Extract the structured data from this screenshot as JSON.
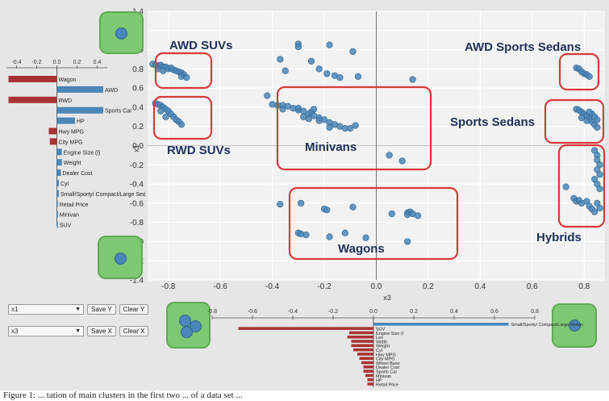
{
  "scatter": {
    "x_axis_label": "x3",
    "y_axis_label": "x1",
    "x_ticks": [
      "-0.8",
      "-0.6",
      "-0.4",
      "-0.2",
      "0.0",
      "0.2",
      "0.4",
      "0.6",
      "0.8"
    ],
    "y_ticks": [
      "1.4",
      "1.2",
      "1.0",
      "0.8",
      "0.6",
      "0.4",
      "0.2",
      "0.0",
      "-0.2",
      "-0.4",
      "-0.6",
      "-0.8",
      "-1.0",
      "-1.2",
      "-1.4"
    ],
    "clusters": {
      "awd_suvs": "AWD SUVs",
      "rwd_suvs": "RWD SUVs",
      "minivans": "Minivans",
      "wagons": "Wagons",
      "awd_sports_sedans": "AWD Sports Sedans",
      "sports_sedans": "Sports Sedans",
      "hybrids": "Hybrids"
    },
    "colors": {
      "point": "#4a86b7",
      "point_stroke": "#2f628f",
      "highlight": "#d93a3a",
      "bar": "#a83232",
      "bar_pos": "#4a86b7"
    }
  },
  "chart_data": [
    {
      "type": "scatter",
      "xlabel": "x3",
      "ylabel": "x1",
      "xlim": [
        -0.88,
        0.88
      ],
      "ylim": [
        -1.4,
        1.4
      ],
      "grid": true,
      "points": [
        [
          -0.86,
          0.85
        ],
        [
          -0.85,
          0.84
        ],
        [
          -0.84,
          0.83
        ],
        [
          -0.83,
          0.84
        ],
        [
          -0.82,
          0.82
        ],
        [
          -0.81,
          0.82
        ],
        [
          -0.8,
          0.8
        ],
        [
          -0.79,
          0.81
        ],
        [
          -0.78,
          0.79
        ],
        [
          -0.77,
          0.78
        ],
        [
          -0.76,
          0.77
        ],
        [
          -0.75,
          0.76
        ],
        [
          -0.74,
          0.74
        ],
        [
          -0.75,
          0.72
        ],
        [
          -0.73,
          0.71
        ],
        [
          -0.84,
          0.8
        ],
        [
          -0.82,
          0.78
        ],
        [
          -0.85,
          0.44
        ],
        [
          -0.84,
          0.43
        ],
        [
          -0.83,
          0.42
        ],
        [
          -0.82,
          0.4
        ],
        [
          -0.81,
          0.38
        ],
        [
          -0.8,
          0.36
        ],
        [
          -0.79,
          0.33
        ],
        [
          -0.78,
          0.3
        ],
        [
          -0.77,
          0.27
        ],
        [
          -0.76,
          0.25
        ],
        [
          -0.75,
          0.22
        ],
        [
          -0.83,
          0.36
        ],
        [
          -0.81,
          0.3
        ],
        [
          -0.42,
          0.52
        ],
        [
          -0.4,
          0.43
        ],
        [
          -0.38,
          0.42
        ],
        [
          -0.36,
          0.42
        ],
        [
          -0.34,
          0.41
        ],
        [
          -0.32,
          0.39
        ],
        [
          -0.3,
          0.37
        ],
        [
          -0.28,
          0.36
        ],
        [
          -0.26,
          0.33
        ],
        [
          -0.25,
          0.35
        ],
        [
          -0.24,
          0.31
        ],
        [
          -0.22,
          0.29
        ],
        [
          -0.2,
          0.27
        ],
        [
          -0.18,
          0.24
        ],
        [
          -0.16,
          0.22
        ],
        [
          -0.14,
          0.2
        ],
        [
          -0.12,
          0.18
        ],
        [
          -0.1,
          0.18
        ],
        [
          -0.08,
          0.21
        ],
        [
          -0.28,
          0.3
        ],
        [
          -0.26,
          0.28
        ],
        [
          -0.22,
          0.26
        ],
        [
          -0.18,
          0.19
        ],
        [
          -0.3,
          0.39
        ],
        [
          -0.36,
          0.38
        ],
        [
          -0.24,
          0.38
        ],
        [
          -0.3,
          1.06
        ],
        [
          -0.3,
          1.03
        ],
        [
          -0.18,
          1.05
        ],
        [
          -0.37,
          0.9
        ],
        [
          -0.35,
          0.78
        ],
        [
          -0.25,
          0.88
        ],
        [
          -0.22,
          0.8
        ],
        [
          -0.19,
          0.75
        ],
        [
          -0.16,
          0.73
        ],
        [
          -0.14,
          0.71
        ],
        [
          -0.09,
          0.98
        ],
        [
          -0.07,
          0.72
        ],
        [
          0.14,
          0.69
        ],
        [
          0.05,
          -0.1
        ],
        [
          0.1,
          -0.16
        ],
        [
          -0.37,
          -0.61
        ],
        [
          -0.29,
          -0.6
        ],
        [
          -0.2,
          -0.66
        ],
        [
          -0.19,
          -0.67
        ],
        [
          -0.09,
          -0.64
        ],
        [
          -0.3,
          -0.91
        ],
        [
          -0.29,
          -0.92
        ],
        [
          -0.27,
          -0.93
        ],
        [
          -0.18,
          -0.95
        ],
        [
          -0.12,
          -0.91
        ],
        [
          -0.04,
          -0.96
        ],
        [
          0.06,
          -0.71
        ],
        [
          0.12,
          -0.7
        ],
        [
          0.13,
          -0.69
        ],
        [
          0.14,
          -0.71
        ],
        [
          0.16,
          -0.73
        ],
        [
          0.12,
          -1.0
        ],
        [
          0.12,
          -0.72
        ],
        [
          0.77,
          0.81
        ],
        [
          0.78,
          0.8
        ],
        [
          0.79,
          0.77
        ],
        [
          0.8,
          0.75
        ],
        [
          0.81,
          0.74
        ],
        [
          0.82,
          0.72
        ],
        [
          0.77,
          0.38
        ],
        [
          0.78,
          0.37
        ],
        [
          0.79,
          0.35
        ],
        [
          0.8,
          0.33
        ],
        [
          0.81,
          0.31
        ],
        [
          0.82,
          0.28
        ],
        [
          0.83,
          0.25
        ],
        [
          0.84,
          0.22
        ],
        [
          0.85,
          0.19
        ],
        [
          0.83,
          0.33
        ],
        [
          0.81,
          0.26
        ],
        [
          0.79,
          0.29
        ],
        [
          0.84,
          0.3
        ],
        [
          0.82,
          0.35
        ],
        [
          0.85,
          0.27
        ],
        [
          0.84,
          -0.05
        ],
        [
          0.85,
          -0.1
        ],
        [
          0.85,
          -0.15
        ],
        [
          0.86,
          -0.2
        ],
        [
          0.85,
          -0.25
        ],
        [
          0.86,
          -0.3
        ],
        [
          0.84,
          -0.35
        ],
        [
          0.85,
          -0.4
        ],
        [
          0.86,
          -0.45
        ],
        [
          0.73,
          -0.43
        ],
        [
          0.76,
          -0.55
        ],
        [
          0.77,
          -0.58
        ],
        [
          0.78,
          -0.57
        ],
        [
          0.79,
          -0.6
        ],
        [
          0.81,
          -0.58
        ],
        [
          0.82,
          -0.63
        ],
        [
          0.83,
          -0.66
        ],
        [
          0.84,
          -0.69
        ],
        [
          0.85,
          -0.6
        ],
        [
          0.86,
          -0.65
        ]
      ],
      "annotations": [
        "AWD SUVs",
        "RWD SUVs",
        "Minivans",
        "Wagons",
        "AWD Sports Sedans",
        "Sports Sedans",
        "Hybrids"
      ]
    },
    {
      "type": "bar",
      "orientation": "horizontal",
      "ticks": [
        "-0.4",
        "-0.2",
        "0.0",
        "0.2",
        "0.4"
      ],
      "xlim": [
        -0.5,
        0.5
      ],
      "categories": [
        "Wagon",
        "AWD",
        "RWD",
        "Sports Car",
        "HP",
        "Hwy MPG",
        "City MPG",
        "Engine Size (l)",
        "Weight",
        "Dealer Cost",
        "Cyl",
        "Small/Sporty/ Compact/Large Sedan",
        "Retail Price",
        "Minivan",
        "SUV"
      ],
      "values": [
        -0.48,
        0.46,
        -0.48,
        0.46,
        0.18,
        -0.08,
        -0.07,
        0.05,
        0.05,
        0.04,
        0.02,
        0.02,
        0.01,
        0.01,
        0.01
      ]
    },
    {
      "type": "bar",
      "orientation": "horizontal",
      "ticks": [
        "-0.8",
        "-0.6",
        "-0.4",
        "-0.2",
        "0.0",
        "0.2",
        "0.4",
        "0.6",
        "0.8"
      ],
      "xlim": [
        -0.8,
        0.8
      ],
      "categories": [
        "Small/Sporty/ Compact/Large Sedan",
        "SUV",
        "Engine Size (l",
        "Len",
        "Width",
        "Weight",
        "Cyl",
        "Hwy MPG",
        "City MPG",
        "Wheel Base",
        "Dealer Cost",
        "Sports Car",
        "Minivan",
        "HP",
        "Retail Price"
      ],
      "values": [
        0.67,
        -0.67,
        -0.12,
        -0.13,
        -0.11,
        -0.11,
        -0.1,
        -0.08,
        -0.07,
        -0.06,
        -0.05,
        -0.05,
        -0.04,
        -0.03,
        -0.03
      ]
    }
  ],
  "controls": {
    "row1": {
      "select_value": "x1",
      "save_label": "Save Y",
      "clear_label": "Clear Y"
    },
    "row2": {
      "select_value": "x3",
      "save_label": "Save X",
      "clear_label": "Clear X"
    }
  },
  "caption": "Figure 1: ... tation of main clusters in the first two ... of a data set ..."
}
